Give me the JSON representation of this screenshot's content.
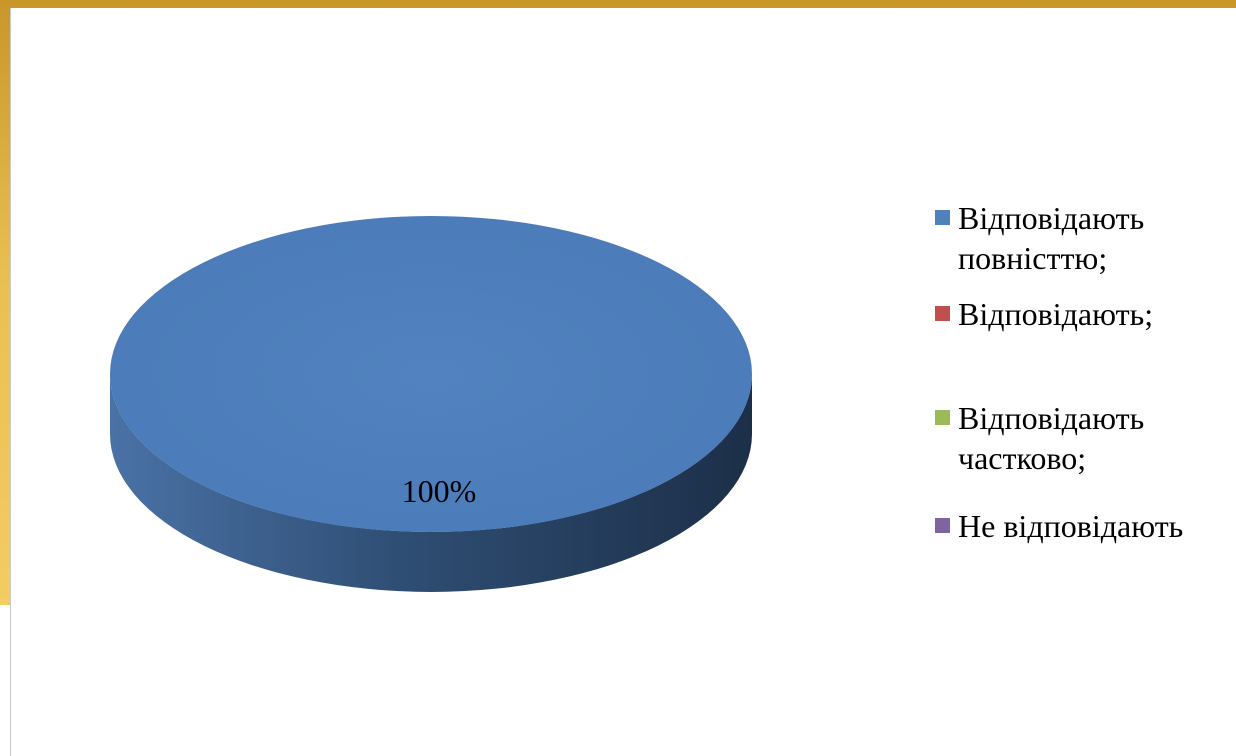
{
  "chart_data": {
    "type": "pie",
    "style": "3d",
    "slices": [
      {
        "label": "Відповідають повністю;",
        "value": 100,
        "color": "#4f81bd"
      },
      {
        "label": "Відповідають;",
        "value": 0,
        "color": "#c0504d"
      },
      {
        "label": "Відповідають частково;",
        "value": 0,
        "color": "#9bbb59"
      },
      {
        "label": "Не відповідають",
        "value": 0,
        "color": "#8064a2"
      }
    ],
    "data_labels": [
      "100%"
    ],
    "legend_position": "right"
  },
  "legend": [
    {
      "text": "Відповідають\nповністтю;",
      "color": "#4f81bd"
    },
    {
      "text": "Відповідають;",
      "color": "#c0504d"
    },
    {
      "text": "Відповідають\nчастково;",
      "color": "#9bbb59"
    },
    {
      "text": "Не відповідають",
      "color": "#8064a2"
    }
  ]
}
